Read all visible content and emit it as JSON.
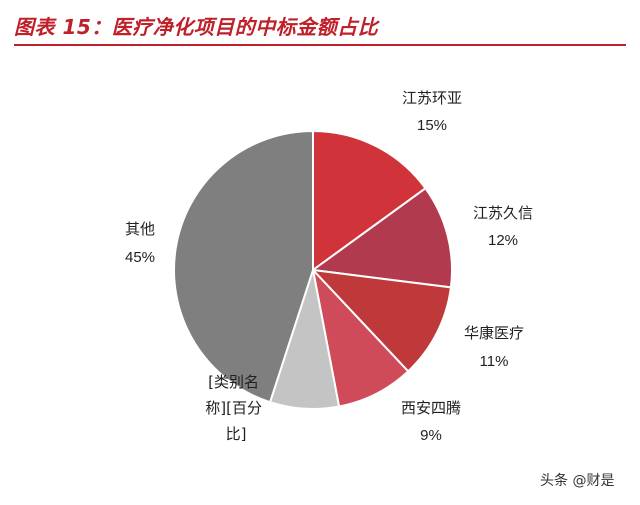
{
  "header": {
    "title": "图表 15：医疗净化项目的中标金额占比"
  },
  "chart_data": {
    "type": "pie",
    "title": "图表 15：医疗净化项目的中标金额占比",
    "slices": [
      {
        "label": "江苏环亚",
        "value": 15,
        "value_label": "15%",
        "color": "#d0343a"
      },
      {
        "label": "江苏久信",
        "value": 12,
        "value_label": "12%",
        "color": "#b23a4e"
      },
      {
        "label": "华康医疗",
        "value": 11,
        "value_label": "11%",
        "color": "#c0393a"
      },
      {
        "label": "西安四腾",
        "value": 9,
        "value_label": "9%",
        "color": "#cf4b5a"
      },
      {
        "label": "[类别名称][百分比]",
        "value": 8,
        "value_label": "",
        "color": "#c4c4c4"
      },
      {
        "label": "其他",
        "value": 45,
        "value_label": "45%",
        "color": "#7f7f7f"
      }
    ],
    "start_angle_deg": 0,
    "direction": "clockwise",
    "legend": "none",
    "data_labels": "outside"
  },
  "footer": {
    "watermark": "头条 @财是"
  }
}
